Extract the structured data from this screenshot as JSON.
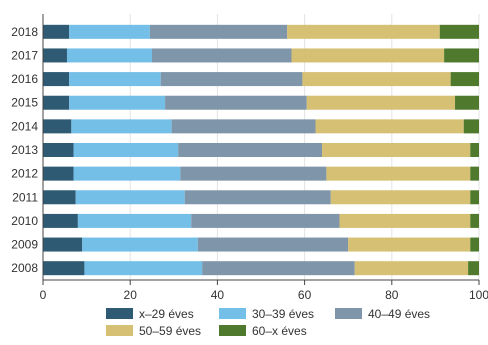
{
  "chart_data": {
    "type": "bar",
    "orientation": "horizontal",
    "stacked": true,
    "categories": [
      "2018",
      "2017",
      "2016",
      "2015",
      "2014",
      "2013",
      "2012",
      "2011",
      "2010",
      "2009",
      "2008"
    ],
    "series": [
      {
        "name": "x–29 éves",
        "color": "#2e5a73",
        "values": [
          6.0,
          5.5,
          6.0,
          6.0,
          6.5,
          7.0,
          7.0,
          7.5,
          8.0,
          9.0,
          9.5
        ]
      },
      {
        "name": "30–39 éves",
        "color": "#73bfe8",
        "values": [
          18.5,
          19.5,
          21.0,
          22.0,
          23.0,
          24.0,
          24.5,
          25.0,
          26.0,
          26.5,
          27.0
        ]
      },
      {
        "name": "40–49 éves",
        "color": "#7f95aa",
        "values": [
          31.5,
          32.0,
          32.5,
          32.5,
          33.0,
          33.0,
          33.5,
          33.5,
          34.0,
          34.5,
          35.0
        ]
      },
      {
        "name": "50–59 éves",
        "color": "#d6c073",
        "values": [
          35.0,
          35.0,
          34.0,
          34.0,
          34.0,
          34.0,
          33.0,
          32.0,
          30.0,
          28.0,
          26.0
        ]
      },
      {
        "name": "60–x éves",
        "color": "#4f7a2e",
        "values": [
          9.0,
          8.0,
          6.5,
          5.5,
          3.5,
          2.0,
          2.0,
          2.0,
          2.0,
          2.0,
          2.5
        ]
      }
    ],
    "xlim": [
      0,
      100
    ],
    "x_ticks": [
      "0",
      "20",
      "40",
      "60",
      "80",
      "100"
    ],
    "xlabel": "",
    "ylabel": "",
    "title": "",
    "grid": "vertical",
    "legend": "bottom"
  }
}
